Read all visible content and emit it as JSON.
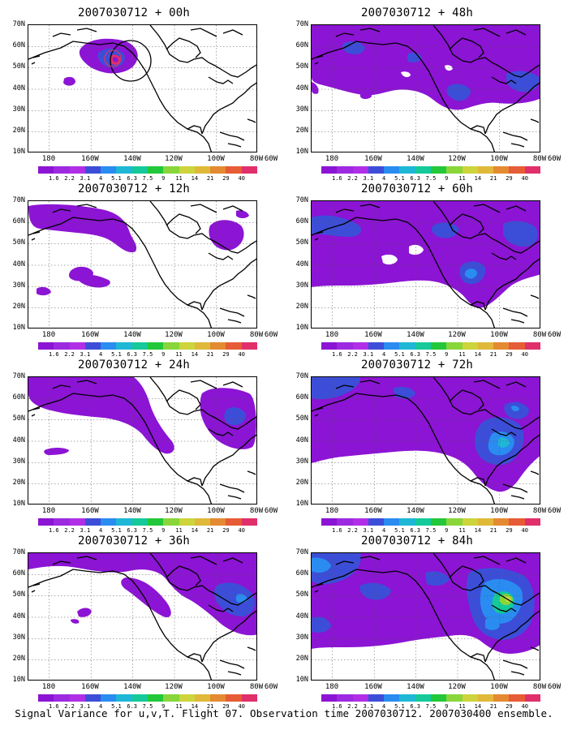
{
  "figure": {
    "caption": "Signal Variance for u,v,T. Flight 07. Observation time 2007030712. 2007030400 ensemble.",
    "latitude_labels": [
      "70N",
      "60N",
      "50N",
      "40N",
      "30N",
      "20N",
      "10N"
    ],
    "longitude_labels": [
      "180",
      "160W",
      "140W",
      "120W",
      "100W",
      "80W",
      "60W"
    ],
    "colorbar": {
      "labels": [
        "1.6",
        "2.2",
        "3.1",
        "4",
        "5.1",
        "6.3",
        "7.5",
        "9",
        "11",
        "14",
        "21",
        "29",
        "40"
      ],
      "colors": [
        "#8c14d4",
        "#9d2ae0",
        "#b02fe6",
        "#3c4ed8",
        "#2a8cf0",
        "#1fb7d6",
        "#15c99a",
        "#22c83a",
        "#88d63a",
        "#cdd43c",
        "#e0b93a",
        "#e48a32",
        "#e65c36",
        "#e02f6a"
      ]
    },
    "domain": {
      "lon_range": [
        "170E",
        "60W"
      ],
      "lat_range": [
        "10N",
        "70N"
      ]
    },
    "panels": [
      {
        "id": "00h",
        "title": "2007030712 + 00h",
        "col": 0,
        "row": 0,
        "spread": "small",
        "observation_circle": true
      },
      {
        "id": "12h",
        "title": "2007030712 + 12h",
        "col": 0,
        "row": 1,
        "spread": "moderate"
      },
      {
        "id": "24h",
        "title": "2007030712 + 24h",
        "col": 0,
        "row": 2,
        "spread": "moderate"
      },
      {
        "id": "36h",
        "title": "2007030712 + 36h",
        "col": 0,
        "row": 3,
        "spread": "large"
      },
      {
        "id": "48h",
        "title": "2007030712 + 48h",
        "col": 1,
        "row": 0,
        "spread": "large"
      },
      {
        "id": "60h",
        "title": "2007030712 + 60h",
        "col": 1,
        "row": 1,
        "spread": "larger"
      },
      {
        "id": "72h",
        "title": "2007030712 + 72h",
        "col": 1,
        "row": 2,
        "spread": "larger"
      },
      {
        "id": "84h",
        "title": "2007030712 + 84h",
        "col": 1,
        "row": 3,
        "spread": "largest"
      }
    ]
  }
}
